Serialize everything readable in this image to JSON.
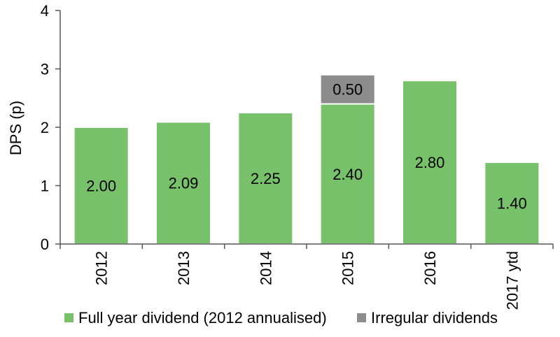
{
  "chart_data": {
    "type": "bar",
    "stacked": true,
    "ylabel": "DPS (p)",
    "xlabel": "",
    "ylim": [
      0,
      4
    ],
    "yticks": [
      "0",
      "1",
      "2",
      "3",
      "4"
    ],
    "categories": [
      "2012",
      "2013",
      "2014",
      "2015",
      "2016",
      "2017 ytd"
    ],
    "series": [
      {
        "name": "Full year dividend (2012 annualised)",
        "color": "#77c16b",
        "values": [
          2.0,
          2.09,
          2.25,
          2.4,
          2.8,
          1.4
        ],
        "labels": [
          "2.00",
          "2.09",
          "2.25",
          "2.40",
          "2.80",
          "1.40"
        ]
      },
      {
        "name": "Irregular dividends",
        "color": "#8c8c8c",
        "values": [
          0,
          0,
          0,
          0.5,
          0,
          0
        ],
        "labels": [
          "",
          "",
          "",
          "0.50",
          "",
          ""
        ]
      }
    ],
    "grid": false,
    "legend_position": "bottom"
  }
}
